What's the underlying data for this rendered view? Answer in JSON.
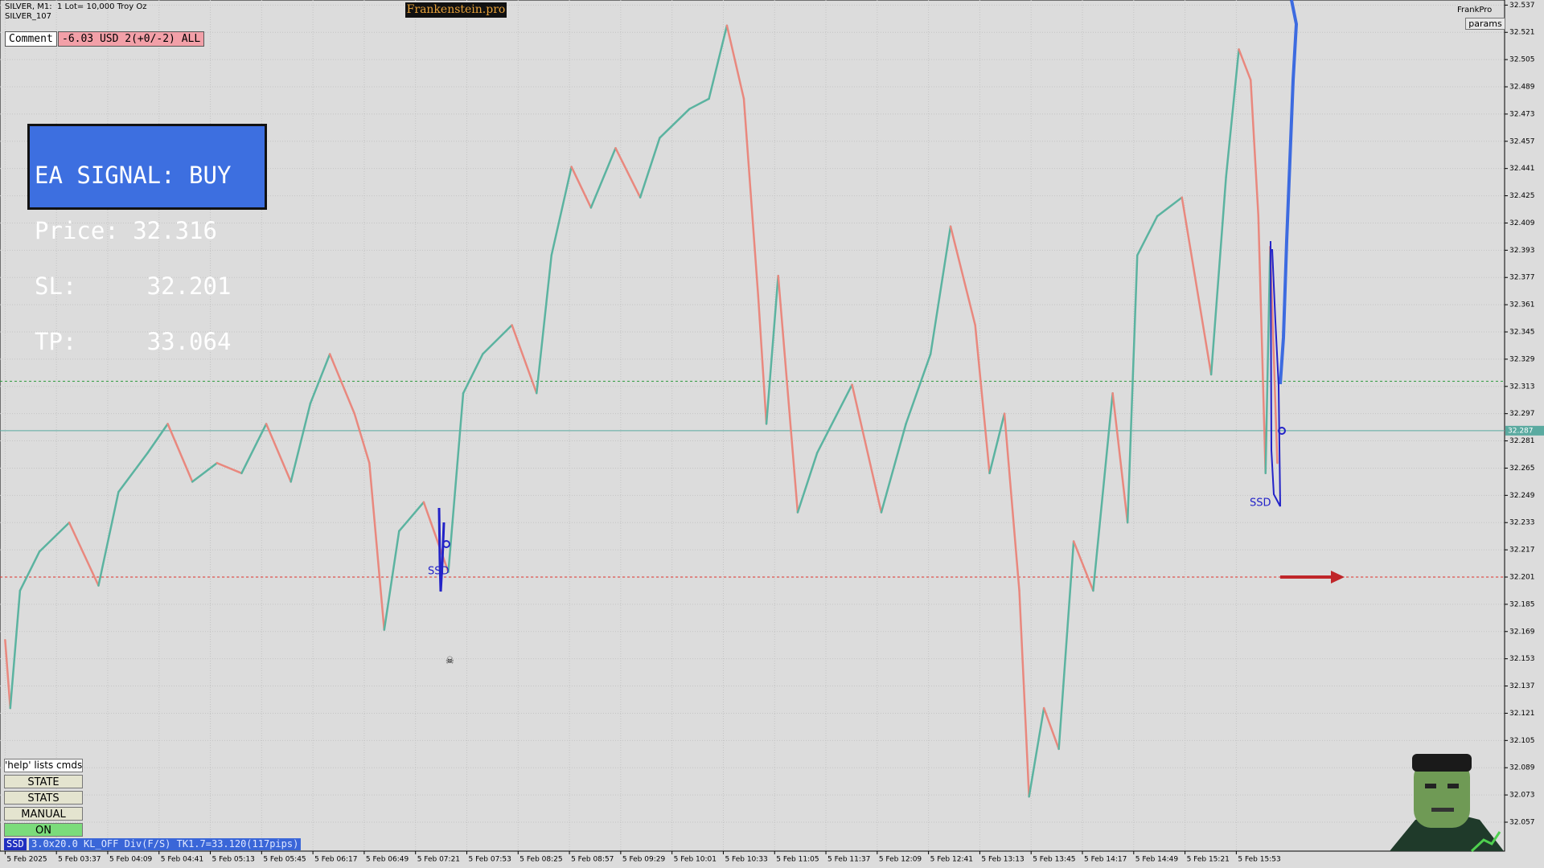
{
  "header": {
    "symbol": "SILVER, M1:  1 Lot= 10,000 Troy Oz",
    "account": "SILVER_107",
    "brand": "Frankenstein.pro",
    "user": "FrankPro",
    "params": "params"
  },
  "comment": {
    "label": "Comment",
    "text": "-6.03 USD 2(+0/-2) ALL"
  },
  "signal": {
    "lines": [
      "EA SIGNAL: BUY",
      "Price: 32.316",
      "SL:     32.201",
      "TP:     33.064"
    ]
  },
  "buttons": {
    "help": "'help' lists cmds",
    "items": [
      "STATE",
      "STATS",
      "MANUAL",
      "ON"
    ]
  },
  "status": {
    "tag": "SSD",
    "text": "3.0x20.0 KL_OFF Div(F/S) TK1.7=33.120(117pips)"
  },
  "markers": [
    "SSD",
    "SSD"
  ],
  "chart_data": {
    "type": "line",
    "categories": [
      "5 Feb 2025",
      "5 Feb 03:37",
      "5 Feb 04:09",
      "5 Feb 04:41",
      "5 Feb 05:13",
      "5 Feb 05:45",
      "5 Feb 06:17",
      "5 Feb 06:49",
      "5 Feb 07:21",
      "5 Feb 07:53",
      "5 Feb 08:25",
      "5 Feb 08:57",
      "5 Feb 09:29",
      "5 Feb 10:01",
      "5 Feb 10:33",
      "5 Feb 11:05",
      "5 Feb 11:37",
      "5 Feb 12:09",
      "5 Feb 12:41",
      "5 Feb 13:13",
      "5 Feb 13:45",
      "5 Feb 14:17",
      "5 Feb 14:49",
      "5 Feb 15:21",
      "5 Feb 15:53"
    ],
    "series": [
      {
        "name": "SILVER",
        "up_color": "#5bb3a0",
        "down_color": "#e9887e",
        "x": [
          0,
          0.1,
          0.29,
          0.67,
          1.25,
          1.82,
          2.21,
          2.78,
          3.17,
          3.65,
          4.13,
          4.61,
          5.09,
          5.57,
          5.95,
          6.33,
          6.81,
          7.1,
          7.39,
          7.68,
          8.16,
          8.64,
          8.93,
          9.31,
          9.88,
          10.36,
          10.65,
          11.04,
          11.42,
          11.9,
          12.38,
          12.76,
          13.34,
          13.72,
          14.07,
          14.4,
          14.68,
          14.84,
          15.07,
          15.45,
          15.83,
          16.51,
          17.08,
          17.56,
          18.04,
          18.43,
          18.91,
          19.19,
          19.48,
          19.77,
          19.96,
          20.25,
          20.54,
          20.83,
          21.21,
          21.59,
          21.88,
          22.07,
          22.46,
          22.94,
          23.51,
          23.8,
          24.05,
          24.28,
          24.43,
          24.57,
          24.66,
          24.8
        ],
        "values": [
          32.164,
          32.124,
          32.193,
          32.216,
          32.233,
          32.196,
          32.251,
          32.274,
          32.291,
          32.257,
          32.268,
          32.262,
          32.291,
          32.257,
          32.303,
          32.332,
          32.297,
          32.268,
          32.17,
          32.228,
          32.245,
          32.204,
          32.309,
          32.332,
          32.349,
          32.309,
          32.39,
          32.442,
          32.418,
          32.453,
          32.424,
          32.459,
          32.476,
          32.482,
          32.525,
          32.482,
          32.366,
          32.291,
          32.378,
          32.239,
          32.274,
          32.314,
          32.239,
          32.291,
          32.332,
          32.407,
          32.349,
          32.262,
          32.297,
          32.193,
          32.072,
          32.124,
          32.1,
          32.222,
          32.193,
          32.309,
          32.233,
          32.39,
          32.413,
          32.424,
          32.32,
          32.436,
          32.511,
          32.493,
          32.413,
          32.262,
          32.395,
          32.268
        ]
      }
    ],
    "levels": [
      {
        "value": 32.316,
        "color": "#2e9a3c",
        "style": "dotted"
      },
      {
        "value": 32.287,
        "color": "#5aaaa0",
        "style": "solid",
        "label": "32.287"
      },
      {
        "value": 32.201,
        "color": "#e0302a",
        "style": "dotted"
      }
    ],
    "xlim": [
      -0.1,
      29.23
    ],
    "ylim": [
      32.04,
      32.54
    ],
    "yticks": [
      32.537,
      32.521,
      32.505,
      32.489,
      32.473,
      32.457,
      32.441,
      32.425,
      32.409,
      32.393,
      32.377,
      32.361,
      32.345,
      32.329,
      32.313,
      32.297,
      32.281,
      32.265,
      32.249,
      32.233,
      32.217,
      32.201,
      32.185,
      32.169,
      32.153,
      32.137,
      32.121,
      32.105,
      32.089,
      32.073,
      32.057
    ],
    "grid": true
  }
}
